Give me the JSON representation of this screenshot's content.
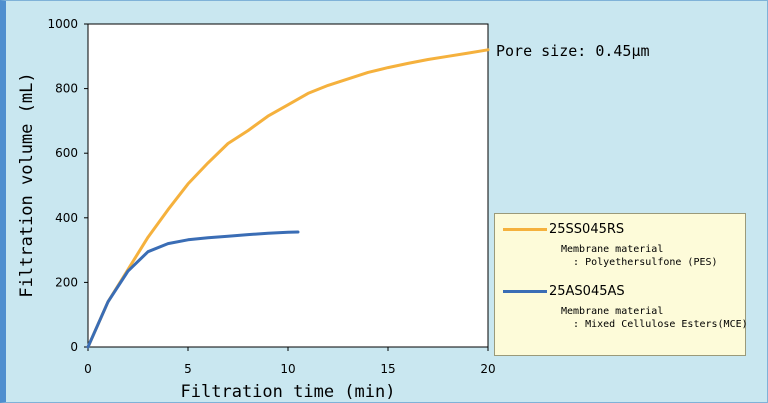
{
  "chart_data": {
    "type": "line",
    "title": "",
    "xlabel": "Filtration time (min)",
    "ylabel": "Filtration volume (mL)",
    "xlim": [
      0,
      20
    ],
    "ylim": [
      0,
      1000
    ],
    "xticks": [
      "0",
      "5",
      "10",
      "15",
      "20"
    ],
    "yticks": [
      "0",
      "200",
      "400",
      "600",
      "800",
      "1000"
    ],
    "grid": false,
    "legend_position": "right",
    "annotation": "Pore size: 0.45μm",
    "series": [
      {
        "name": "25SS045RS",
        "detail_line1": "Membrane material",
        "detail_line2": ": Polyethersulfone (PES)",
        "color": "#f5b13d",
        "x": [
          0,
          1,
          2,
          3,
          4,
          5,
          6,
          7,
          8,
          9,
          10,
          11,
          12,
          13,
          14,
          15,
          16,
          17,
          18,
          19,
          20
        ],
        "y": [
          0,
          140,
          240,
          340,
          425,
          505,
          570,
          630,
          670,
          715,
          750,
          785,
          810,
          830,
          850,
          865,
          878,
          890,
          900,
          910,
          920
        ]
      },
      {
        "name": "25AS045AS",
        "detail_line1": "Membrane material",
        "detail_line2": ": Mixed Cellulose Esters(MCE)",
        "color": "#3a6db5",
        "x": [
          0,
          1,
          2,
          3,
          4,
          5,
          6,
          7,
          8,
          9,
          10,
          10.5
        ],
        "y": [
          0,
          140,
          235,
          295,
          320,
          332,
          338,
          343,
          348,
          352,
          355,
          356
        ]
      }
    ]
  }
}
